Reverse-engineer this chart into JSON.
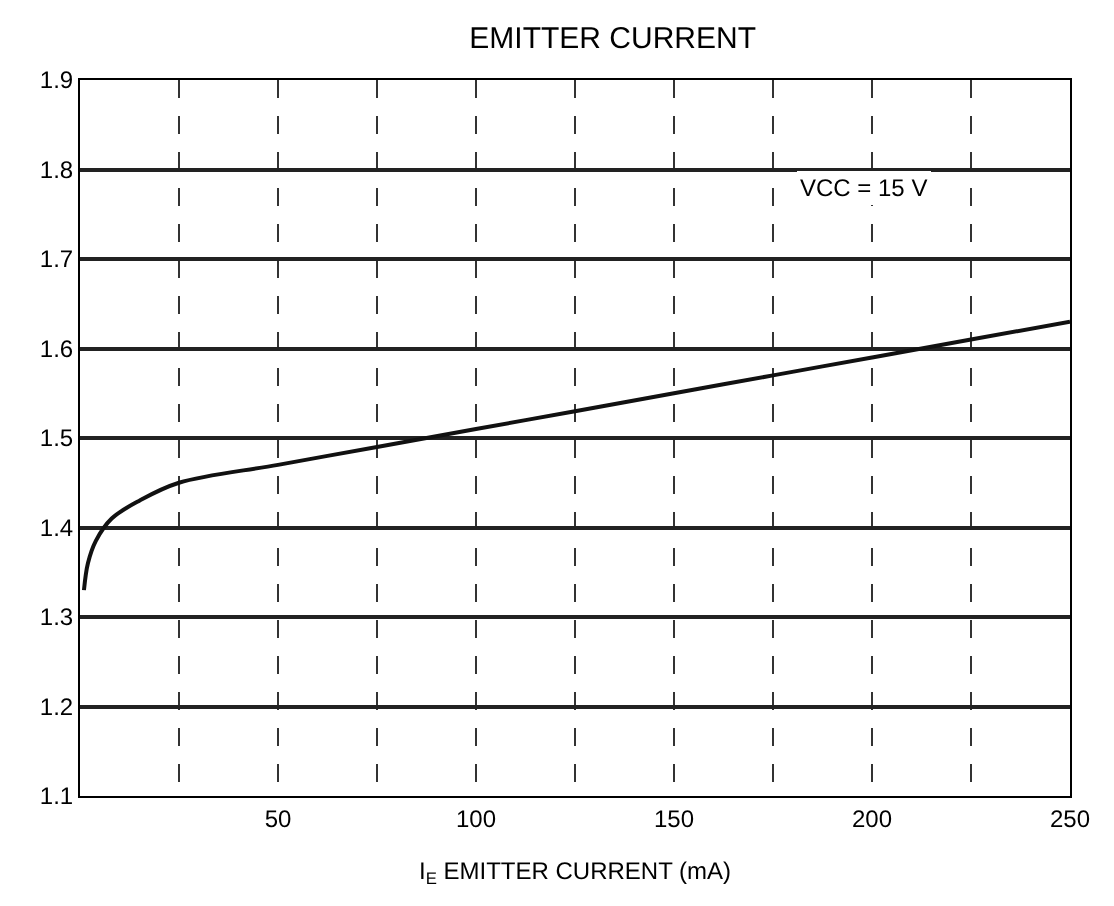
{
  "chart_data": {
    "type": "line",
    "title": "EMITTER CURRENT",
    "xlabel": "I$_{E}$ EMITTER CURRENT (mA)",
    "x": [
      1,
      2,
      4,
      8,
      15,
      25,
      50,
      75,
      100,
      125,
      150,
      175,
      200,
      225,
      250
    ],
    "series": [
      {
        "color": "#111111",
        "values": [
          1.33,
          1.36,
          1.385,
          1.41,
          1.43,
          1.45,
          1.47,
          1.49,
          1.51,
          1.53,
          1.55,
          1.57,
          1.59,
          1.61,
          1.63
        ]
      }
    ],
    "xlim": [
      0,
      250
    ],
    "xticks": [
      {
        "value": 0,
        "label": null
      },
      {
        "value": 25,
        "label": null
      },
      50,
      {
        "value": 75,
        "label": null
      },
      100,
      {
        "value": 125,
        "label": null
      },
      150,
      {
        "value": 175,
        "label": null
      },
      200,
      {
        "value": 225,
        "label": null
      },
      250
    ],
    "ylim": [
      1.1,
      1.9
    ],
    "yticks": [
      1.1,
      1.2,
      1.3,
      1.4,
      1.5,
      1.6,
      1.7,
      1.8,
      1.9
    ],
    "annotations": [
      "VCC = 15 V"
    ],
    "grid": true,
    "legend": false,
    "marker": "none",
    "line_style": "solid"
  }
}
